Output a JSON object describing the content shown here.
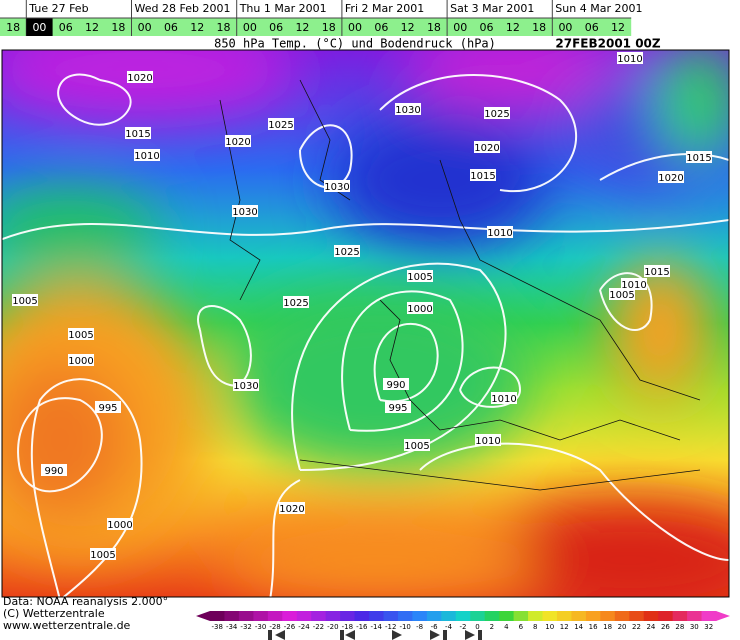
{
  "timeline": {
    "days": [
      "Tue 27 Feb",
      "Wed 28 Feb 2001",
      "Thu 1 Mar 2001",
      "Fri 2 Mar 2001",
      "Sat 3 Mar 2001",
      "Sun 4 Mar 2001"
    ],
    "hours": [
      "18",
      "00",
      "06",
      "12",
      "18",
      "00",
      "06",
      "12",
      "18",
      "00",
      "06",
      "12",
      "18",
      "00",
      "06",
      "12",
      "18",
      "00",
      "06",
      "12",
      "18",
      "00",
      "06",
      "12"
    ]
  },
  "map": {
    "title": "850 hPa Temp. (°C) und Bodendruck (hPa)",
    "timestamp": "27FEB2001 00Z",
    "isobar_labels": [
      "1020",
      "1015",
      "1010",
      "1020",
      "1025",
      "1030",
      "1030",
      "1030",
      "1025",
      "1025",
      "1005",
      "1000",
      "990",
      "995",
      "1005",
      "1010",
      "1010",
      "1025",
      "1020",
      "1015",
      "1010",
      "1010",
      "1015",
      "1020",
      "1015",
      "1010",
      "1005",
      "1005",
      "1005",
      "1000",
      "995",
      "990",
      "1030",
      "1020",
      "1000",
      "1005"
    ]
  },
  "colorbar": {
    "labels": [
      -38,
      -34,
      -32,
      -30,
      -28,
      -26,
      -24,
      -22,
      -20,
      -18,
      -16,
      -14,
      -12,
      -10,
      -8,
      -6,
      -4,
      -2,
      0,
      2,
      4,
      6,
      8,
      10,
      12,
      14,
      16,
      18,
      20,
      22,
      24,
      26,
      28,
      30,
      32
    ]
  },
  "footer": {
    "lines": [
      "Data: NOAA reanalysis 2.000°",
      "(C) Wetterzentrale",
      "www.wetterzentrale.de"
    ]
  }
}
